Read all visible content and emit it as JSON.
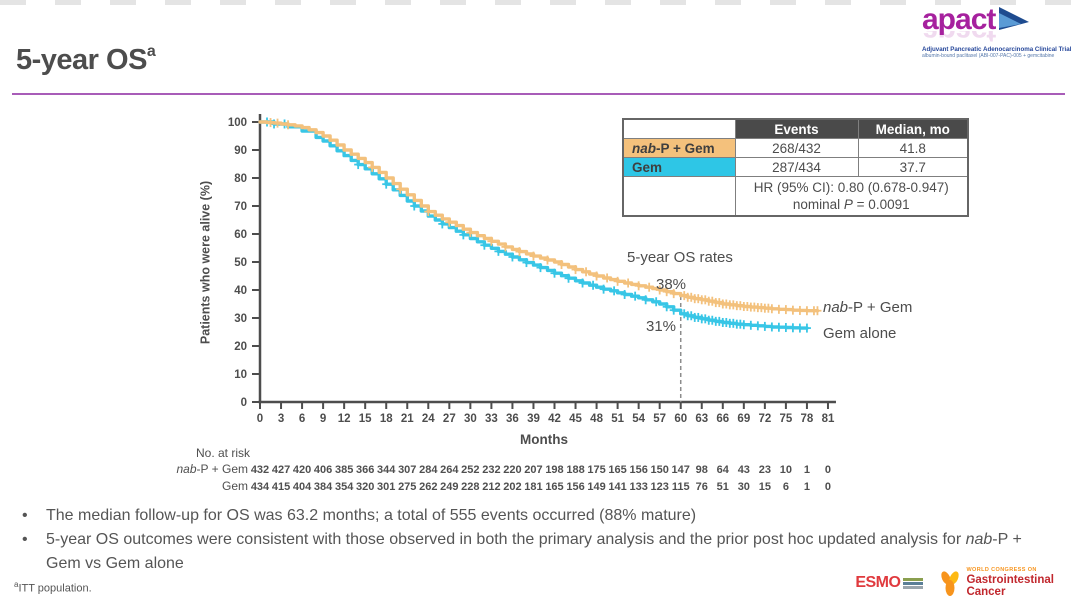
{
  "slide": {
    "title": "5-year OS",
    "title_superscript": "a",
    "footnote_marker": "a",
    "footnote_text": "ITT population."
  },
  "summary_table": {
    "col_headers": {
      "events": "Events",
      "median": "Median, mo"
    },
    "rows": [
      {
        "label_italic": "nab",
        "label_rest": "-P + Gem",
        "events": "268/432",
        "median": "41.8",
        "swatch_color": "#F4C17C"
      },
      {
        "label_italic": "",
        "label_rest": "Gem",
        "events": "287/434",
        "median": "37.7",
        "swatch_color": "#2EC6E6"
      }
    ],
    "hr_line1": "HR (95% CI): 0.80 (0.678-0.947)",
    "hr_line2_pre": "nominal ",
    "hr_line2_italic": "P",
    "hr_line2_post": " = 0.0091"
  },
  "annotations": {
    "rates_title": "5-year OS rates",
    "rate_nabp": "38%",
    "rate_gem": "31%"
  },
  "legend": [
    {
      "italic": "nab",
      "rest": "-P + Gem"
    },
    {
      "italic": "",
      "rest": "Gem alone"
    }
  ],
  "bullets": [
    {
      "pre": "The median follow-up for OS was 63.2 months; a total of 555 events occurred (88% mature)",
      "it": "",
      "post": ""
    },
    {
      "pre": "5-year OS outcomes were consistent with those observed in both the primary analysis and the prior post hoc updated analysis for ",
      "it": "nab",
      "post": "-P + Gem vs Gem alone"
    }
  ],
  "logos": {
    "apact_word": "apact",
    "apact_subtitle": "Adjuvant Pancreatic Adenocarcinoma Clinical Trial",
    "apact_tagline": "albumin-bound paclitaxel (ABI-007-PAC)-005 + gemcitabine",
    "esmo": "ESMO",
    "gi_top": "WORLD CONGRESS ON",
    "gi_line1": "Gastrointestinal",
    "gi_line2": "Cancer"
  },
  "chart_data": {
    "type": "line",
    "subtype": "kaplan-meier",
    "xlabel": "Months",
    "ylabel": "Patients who were alive (%)",
    "xlim": [
      0,
      81
    ],
    "ylim": [
      0,
      100
    ],
    "x_ticks": [
      0,
      3,
      6,
      9,
      12,
      15,
      18,
      21,
      24,
      27,
      30,
      33,
      36,
      39,
      42,
      45,
      48,
      51,
      54,
      57,
      60,
      63,
      66,
      69,
      72,
      75,
      78,
      81
    ],
    "y_ticks": [
      0,
      10,
      20,
      30,
      40,
      50,
      60,
      70,
      80,
      90,
      100
    ],
    "grid": false,
    "dashed_line_x": 60,
    "axis_color": "#4d4d4d",
    "series": [
      {
        "id": "nabp-gem",
        "name": "nab-P + Gem",
        "color": "#F3C17D",
        "events": "268/432",
        "median_mo": 41.8,
        "five_year_rate_pct": 38,
        "km_points": [
          [
            0,
            100
          ],
          [
            1,
            99.8
          ],
          [
            2,
            99.6
          ],
          [
            3,
            99.3
          ],
          [
            4,
            99
          ],
          [
            5,
            98.6
          ],
          [
            6,
            98
          ],
          [
            7,
            97.2
          ],
          [
            8,
            96.2
          ],
          [
            9,
            95
          ],
          [
            10,
            93.5
          ],
          [
            11,
            91.8
          ],
          [
            12,
            90
          ],
          [
            13,
            88.5
          ],
          [
            14,
            87
          ],
          [
            15,
            85.5
          ],
          [
            16,
            83.8
          ],
          [
            17,
            82
          ],
          [
            18,
            80
          ],
          [
            19,
            78
          ],
          [
            20,
            76
          ],
          [
            21,
            74
          ],
          [
            22,
            72
          ],
          [
            23,
            70
          ],
          [
            24,
            68
          ],
          [
            25,
            66.7
          ],
          [
            26,
            65.4
          ],
          [
            27,
            64.2
          ],
          [
            28,
            63
          ],
          [
            29,
            61.7
          ],
          [
            30,
            60.5
          ],
          [
            31,
            59.4
          ],
          [
            32,
            58.4
          ],
          [
            33,
            57.4
          ],
          [
            34,
            56.4
          ],
          [
            35,
            55.4
          ],
          [
            36,
            54.5
          ],
          [
            37,
            53.7
          ],
          [
            38,
            52.9
          ],
          [
            39,
            52.1
          ],
          [
            40,
            51.4
          ],
          [
            41,
            50.7
          ],
          [
            42,
            50
          ],
          [
            43,
            49.1
          ],
          [
            44,
            48.2
          ],
          [
            45,
            47.3
          ],
          [
            46,
            46.5
          ],
          [
            47,
            45.7
          ],
          [
            48,
            45
          ],
          [
            49,
            44.3
          ],
          [
            50,
            43.7
          ],
          [
            51,
            43.1
          ],
          [
            52,
            42.5
          ],
          [
            53,
            42
          ],
          [
            54,
            41.5
          ],
          [
            55,
            41
          ],
          [
            56,
            40.5
          ],
          [
            57,
            40
          ],
          [
            58,
            39.4
          ],
          [
            59,
            38.7
          ],
          [
            60,
            38
          ],
          [
            61,
            37.4
          ],
          [
            62,
            36.9
          ],
          [
            63,
            36.5
          ],
          [
            64,
            36
          ],
          [
            65,
            35.5
          ],
          [
            66,
            35
          ],
          [
            67,
            34.7
          ],
          [
            68,
            34.4
          ],
          [
            69,
            34.1
          ],
          [
            70,
            33.9
          ],
          [
            71,
            33.7
          ],
          [
            72,
            33.5
          ],
          [
            73,
            33.3
          ],
          [
            74,
            33.1
          ],
          [
            75,
            33
          ],
          [
            76,
            32.8
          ],
          [
            77,
            32.7
          ],
          [
            78,
            32.6
          ],
          [
            79.5,
            32.6
          ]
        ],
        "censor_months": [
          1.5,
          2.5,
          4,
          16,
          20,
          24,
          27,
          30,
          33,
          35,
          37,
          39,
          41,
          43,
          45,
          46.5,
          48,
          49.5,
          51,
          52.5,
          54,
          55.5,
          57,
          58,
          59,
          60.5,
          61,
          61.5,
          62,
          62.5,
          63,
          63.5,
          64,
          64.5,
          65,
          65.5,
          66,
          66.5,
          67,
          67.5,
          68,
          68.5,
          69,
          69.5,
          70,
          70.5,
          71,
          71.5,
          72,
          72.5,
          73,
          74,
          75,
          76,
          77,
          78,
          79,
          79.5
        ]
      },
      {
        "id": "gem",
        "name": "Gem alone",
        "color": "#38C6E6",
        "events": "287/434",
        "median_mo": 37.7,
        "five_year_rate_pct": 31,
        "km_points": [
          [
            0,
            100
          ],
          [
            2,
            99.3
          ],
          [
            4,
            98.3
          ],
          [
            6,
            96.8
          ],
          [
            8,
            94.5
          ],
          [
            9,
            93.2
          ],
          [
            10,
            91.5
          ],
          [
            11,
            89.7
          ],
          [
            12,
            88
          ],
          [
            13,
            86.3
          ],
          [
            14,
            84.8
          ],
          [
            15,
            83.3
          ],
          [
            16,
            81.5
          ],
          [
            17,
            79.7
          ],
          [
            18,
            77.8
          ],
          [
            19,
            75.8
          ],
          [
            20,
            73.8
          ],
          [
            21,
            71.8
          ],
          [
            22,
            70
          ],
          [
            23,
            68.2
          ],
          [
            24,
            66.4
          ],
          [
            25,
            65
          ],
          [
            26,
            63.6
          ],
          [
            27,
            62.3
          ],
          [
            28,
            61
          ],
          [
            29,
            59.7
          ],
          [
            30,
            58.4
          ],
          [
            31,
            57.2
          ],
          [
            32,
            56
          ],
          [
            33,
            54.9
          ],
          [
            34,
            53.8
          ],
          [
            35,
            52.8
          ],
          [
            36,
            51.8
          ],
          [
            37,
            50.8
          ],
          [
            38,
            49.8
          ],
          [
            39,
            48.9
          ],
          [
            40,
            48
          ],
          [
            41,
            47
          ],
          [
            42,
            46
          ],
          [
            43,
            45.1
          ],
          [
            44,
            44.2
          ],
          [
            45,
            43.3
          ],
          [
            46,
            42.5
          ],
          [
            47,
            41.7
          ],
          [
            48,
            41
          ],
          [
            49,
            40.3
          ],
          [
            50,
            39.7
          ],
          [
            51,
            39
          ],
          [
            52,
            38.4
          ],
          [
            53,
            37.8
          ],
          [
            54,
            37.2
          ],
          [
            55,
            36.5
          ],
          [
            56,
            35.8
          ],
          [
            57,
            35
          ],
          [
            58,
            34
          ],
          [
            59,
            32.8
          ],
          [
            60,
            31.5
          ],
          [
            61,
            30.8
          ],
          [
            62,
            30.2
          ],
          [
            63,
            29.7
          ],
          [
            64,
            29.2
          ],
          [
            65,
            28.8
          ],
          [
            66,
            28.4
          ],
          [
            67,
            28.1
          ],
          [
            68,
            27.8
          ],
          [
            69,
            27.6
          ],
          [
            70,
            27.4
          ],
          [
            71,
            27.2
          ],
          [
            72,
            27
          ],
          [
            73,
            26.8
          ],
          [
            74,
            26.7
          ],
          [
            75,
            26.6
          ],
          [
            76,
            26.5
          ],
          [
            77,
            26.4
          ],
          [
            78,
            26.4
          ]
        ],
        "censor_months": [
          1,
          2,
          3.5,
          14,
          18,
          22,
          26,
          29,
          32,
          34,
          36,
          38,
          40,
          42,
          44,
          46,
          47.5,
          49,
          50.5,
          52,
          53.5,
          55,
          56.5,
          58,
          59,
          60.5,
          61,
          61.5,
          62,
          62.5,
          63,
          63.5,
          64,
          64.5,
          65,
          65.5,
          66,
          66.5,
          67,
          67.5,
          68,
          68.5,
          69,
          70,
          71,
          72,
          73,
          74,
          75,
          76,
          77,
          78
        ]
      }
    ],
    "at_risk": {
      "label": "No. at risk",
      "rows": [
        {
          "label_italic": "nab",
          "label_rest": "-P + Gem",
          "values": [
            432,
            427,
            420,
            406,
            385,
            366,
            344,
            307,
            284,
            264,
            252,
            232,
            220,
            207,
            198,
            188,
            175,
            165,
            156,
            150,
            147,
            98,
            64,
            43,
            23,
            10,
            1,
            0
          ]
        },
        {
          "label_italic": "",
          "label_rest": "Gem",
          "values": [
            434,
            415,
            404,
            384,
            354,
            320,
            301,
            275,
            262,
            249,
            228,
            212,
            202,
            181,
            165,
            156,
            149,
            141,
            133,
            123,
            115,
            76,
            51,
            30,
            15,
            6,
            1,
            0
          ]
        }
      ]
    }
  }
}
